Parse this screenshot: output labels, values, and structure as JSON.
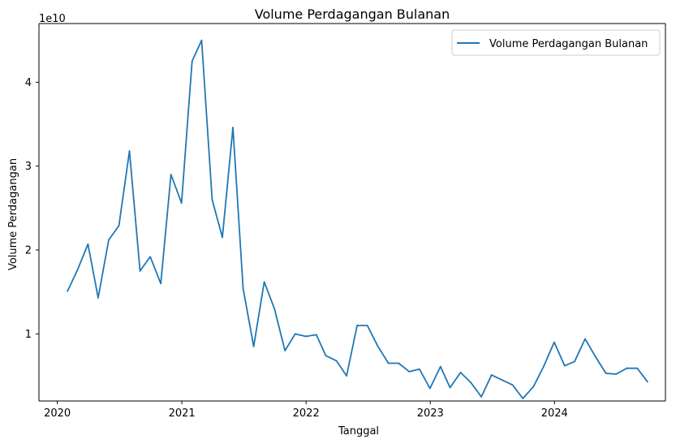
{
  "chart_data": {
    "type": "line",
    "title": "Volume Perdagangan Bulanan",
    "xlabel": "Tanggal",
    "ylabel": "Volume Perdagangan",
    "y_offset_text": "1e10",
    "y_scale": 10000000000,
    "xlim": [
      "2019-11-08",
      "2024-11-22"
    ],
    "ylim": [
      2000000000,
      47000000000
    ],
    "x_ticks": [
      "2020-01-01",
      "2021-01-01",
      "2022-01-01",
      "2023-01-01",
      "2024-01-01"
    ],
    "x_tick_labels": [
      "2020",
      "2021",
      "2022",
      "2023",
      "2024"
    ],
    "y_ticks": [
      1,
      2,
      3,
      4
    ],
    "y_tick_labels": [
      "1",
      "2",
      "3",
      "4"
    ],
    "grid": false,
    "legend_position": "top-right",
    "colors": {
      "series": "#1f77b4"
    },
    "series": [
      {
        "name": "Volume Perdagangan Bulanan",
        "x": [
          "2020-01-31",
          "2020-02-29",
          "2020-03-31",
          "2020-04-30",
          "2020-05-31",
          "2020-06-30",
          "2020-07-31",
          "2020-08-31",
          "2020-09-30",
          "2020-10-31",
          "2020-11-30",
          "2020-12-31",
          "2021-01-31",
          "2021-02-28",
          "2021-03-31",
          "2021-04-30",
          "2021-05-31",
          "2021-06-30",
          "2021-07-31",
          "2021-08-31",
          "2021-09-30",
          "2021-10-31",
          "2021-11-30",
          "2021-12-31",
          "2022-01-31",
          "2022-02-28",
          "2022-03-31",
          "2022-04-30",
          "2022-05-31",
          "2022-06-30",
          "2022-07-31",
          "2022-08-31",
          "2022-09-30",
          "2022-10-31",
          "2022-11-30",
          "2022-12-31",
          "2023-01-31",
          "2023-02-28",
          "2023-03-31",
          "2023-04-30",
          "2023-05-31",
          "2023-06-30",
          "2023-07-31",
          "2023-08-31",
          "2023-09-30",
          "2023-10-31",
          "2023-11-30",
          "2023-12-31",
          "2024-01-31",
          "2024-02-29",
          "2024-03-31",
          "2024-04-30",
          "2024-05-31",
          "2024-06-30",
          "2024-07-31",
          "2024-08-31",
          "2024-09-30"
        ],
        "y": [
          15100000000,
          17600000000,
          20700000000,
          14300000000,
          21200000000,
          22900000000,
          31800000000,
          17500000000,
          19200000000,
          16000000000,
          29000000000,
          25600000000,
          42500000000,
          45000000000,
          26000000000,
          21500000000,
          34600000000,
          15400000000,
          8500000000,
          16200000000,
          13000000000,
          8000000000,
          10000000000,
          9700000000,
          9900000000,
          7400000000,
          6800000000,
          5000000000,
          11000000000,
          11000000000,
          8500000000,
          6500000000,
          6500000000,
          5500000000,
          5800000000,
          3500000000,
          6100000000,
          3600000000,
          5400000000,
          4200000000,
          2500000000,
          5100000000,
          4500000000,
          3900000000,
          2300000000,
          3700000000,
          6100000000,
          9000000000,
          6200000000,
          6700000000,
          9400000000,
          7300000000,
          5300000000,
          5200000000,
          5900000000,
          5900000000,
          4300000000
        ]
      }
    ]
  }
}
